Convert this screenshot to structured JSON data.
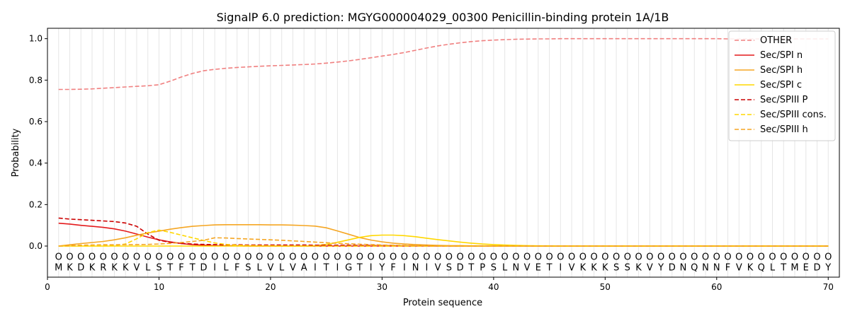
{
  "chart_data": {
    "type": "line",
    "title": "SignalP 6.0 prediction: MGYG000004029_00300 Penicillin-binding protein 1A/1B",
    "xlabel": "Protein sequence",
    "ylabel": "Probability",
    "xlim": [
      0,
      71
    ],
    "ylim": [
      -0.15,
      1.05
    ],
    "x_ticks": [
      0,
      10,
      20,
      30,
      40,
      50,
      60,
      70
    ],
    "y_ticks": [
      0.0,
      0.2,
      0.4,
      0.6,
      0.8,
      1.0
    ],
    "y_tick_labels": [
      "0.0",
      "0.2",
      "0.4",
      "0.6",
      "0.8",
      "1.0"
    ],
    "grid": "vertical lines at each residue",
    "legend_position": "top-right",
    "sequence": [
      "M",
      "K",
      "D",
      "K",
      "R",
      "K",
      "K",
      "V",
      "L",
      "S",
      "T",
      "F",
      "T",
      "D",
      "I",
      "L",
      "F",
      "S",
      "L",
      "V",
      "L",
      "V",
      "A",
      "I",
      "T",
      "I",
      "G",
      "T",
      "I",
      "Y",
      "F",
      "I",
      "N",
      "I",
      "V",
      "S",
      "D",
      "T",
      "P",
      "S",
      "L",
      "N",
      "V",
      "E",
      "T",
      "I",
      "V",
      "K",
      "K",
      "K",
      "S",
      "S",
      "K",
      "V",
      "Y",
      "D",
      "N",
      "Q",
      "N",
      "N",
      "F",
      "V",
      "K",
      "Q",
      "L",
      "T",
      "M",
      "E",
      "D",
      "Y"
    ],
    "marker_label": "O",
    "series": [
      {
        "name": "OTHER",
        "color": "#f08080",
        "dash": "dashed",
        "values": [
          0.755,
          0.755,
          0.756,
          0.758,
          0.761,
          0.764,
          0.767,
          0.77,
          0.773,
          0.778,
          0.795,
          0.815,
          0.832,
          0.845,
          0.852,
          0.857,
          0.861,
          0.864,
          0.867,
          0.869,
          0.871,
          0.873,
          0.875,
          0.878,
          0.882,
          0.887,
          0.893,
          0.9,
          0.908,
          0.916,
          0.924,
          0.933,
          0.944,
          0.955,
          0.965,
          0.973,
          0.98,
          0.986,
          0.99,
          0.993,
          0.995,
          0.997,
          0.998,
          0.999,
          0.999,
          1.0,
          1.0,
          1.0,
          1.0,
          1.0,
          1.0,
          1.0,
          1.0,
          1.0,
          1.0,
          1.0,
          1.0,
          1.0,
          1.0,
          1.0,
          0.999,
          0.999,
          0.999,
          0.999,
          0.999,
          0.999,
          0.999,
          0.999,
          0.999,
          0.999
        ]
      },
      {
        "name": "Sec/SPI n",
        "color": "#e41a1c",
        "dash": "solid",
        "values": [
          0.11,
          0.106,
          0.1,
          0.095,
          0.09,
          0.083,
          0.072,
          0.058,
          0.043,
          0.03,
          0.02,
          0.012,
          0.007,
          0.004,
          0.002,
          0.001,
          0.001,
          0,
          0,
          0,
          0,
          0,
          0,
          0,
          0,
          0,
          0,
          0,
          0,
          0,
          0,
          0,
          0,
          0,
          0,
          0,
          0,
          0,
          0,
          0,
          0,
          0,
          0,
          0,
          0,
          0,
          0,
          0,
          0,
          0,
          0,
          0,
          0,
          0,
          0,
          0,
          0,
          0,
          0,
          0,
          0,
          0,
          0,
          0,
          0,
          0,
          0,
          0,
          0,
          0
        ]
      },
      {
        "name": "Sec/SPI h",
        "color": "#f5a623",
        "dash": "solid",
        "values": [
          0.0,
          0.006,
          0.012,
          0.017,
          0.022,
          0.03,
          0.04,
          0.052,
          0.063,
          0.072,
          0.081,
          0.089,
          0.095,
          0.099,
          0.102,
          0.103,
          0.103,
          0.103,
          0.103,
          0.102,
          0.102,
          0.101,
          0.099,
          0.096,
          0.088,
          0.073,
          0.057,
          0.041,
          0.029,
          0.02,
          0.014,
          0.01,
          0.007,
          0.005,
          0.003,
          0.002,
          0.002,
          0.001,
          0.001,
          0.001,
          0,
          0,
          0,
          0,
          0,
          0,
          0,
          0,
          0,
          0,
          0,
          0,
          0,
          0,
          0,
          0,
          0,
          0,
          0,
          0,
          0,
          0,
          0,
          0,
          0,
          0,
          0,
          0,
          0,
          0
        ]
      },
      {
        "name": "Sec/SPI c",
        "color": "#ffd700",
        "dash": "solid",
        "values": [
          0,
          0,
          0,
          0,
          0,
          0,
          0,
          0,
          0,
          0,
          0,
          0,
          0,
          0,
          0,
          0,
          0,
          0,
          0,
          0,
          0,
          0,
          0,
          0.002,
          0.008,
          0.018,
          0.03,
          0.042,
          0.05,
          0.053,
          0.053,
          0.05,
          0.045,
          0.038,
          0.031,
          0.025,
          0.019,
          0.014,
          0.01,
          0.007,
          0.005,
          0.003,
          0.002,
          0.001,
          0.001,
          0,
          0,
          0,
          0,
          0,
          0,
          0,
          0,
          0,
          0,
          0,
          0,
          0,
          0,
          0,
          0,
          0,
          0,
          0,
          0,
          0,
          0,
          0,
          0,
          0
        ]
      },
      {
        "name": "Sec/SPIII P",
        "color": "#cc0000",
        "dash": "dashed",
        "values": [
          0.135,
          0.13,
          0.127,
          0.124,
          0.121,
          0.118,
          0.111,
          0.095,
          0.058,
          0.028,
          0.018,
          0.013,
          0.01,
          0.008,
          0.007,
          0.006,
          0.006,
          0.005,
          0.005,
          0.005,
          0.005,
          0.005,
          0.005,
          0.004,
          0.004,
          0.004,
          0.004,
          0.003,
          0.003,
          0.002,
          0.002,
          0.001,
          0.001,
          0.001,
          0,
          0,
          0,
          0,
          0,
          0,
          0,
          0,
          0,
          0,
          0,
          0,
          0,
          0,
          0,
          0,
          0,
          0,
          0,
          0,
          0,
          0,
          0,
          0,
          0,
          0,
          0,
          0,
          0,
          0,
          0,
          0,
          0,
          0,
          0,
          0
        ]
      },
      {
        "name": "Sec/SPIII cons.",
        "color": "#ffd700",
        "dash": "dashed",
        "values": [
          0,
          0,
          0,
          0,
          0,
          0.002,
          0.01,
          0.035,
          0.065,
          0.077,
          0.066,
          0.053,
          0.04,
          0.027,
          0.015,
          0.008,
          0.004,
          0.002,
          0.001,
          0.001,
          0,
          0,
          0,
          0,
          0,
          0,
          0,
          0,
          0,
          0,
          0,
          0,
          0,
          0,
          0,
          0,
          0,
          0,
          0,
          0,
          0,
          0,
          0,
          0,
          0,
          0,
          0,
          0,
          0,
          0,
          0,
          0,
          0,
          0,
          0,
          0,
          0,
          0,
          0,
          0,
          0,
          0,
          0,
          0,
          0,
          0,
          0,
          0,
          0,
          0
        ]
      },
      {
        "name": "Sec/SPIII h",
        "color": "#f5a623",
        "dash": "dashed",
        "values": [
          0.0,
          0.002,
          0.004,
          0.005,
          0.006,
          0.006,
          0.007,
          0.007,
          0.008,
          0.01,
          0.013,
          0.017,
          0.022,
          0.028,
          0.04,
          0.039,
          0.036,
          0.034,
          0.032,
          0.03,
          0.028,
          0.025,
          0.022,
          0.019,
          0.016,
          0.013,
          0.011,
          0.009,
          0.007,
          0.005,
          0.004,
          0.003,
          0.002,
          0.002,
          0.001,
          0.001,
          0,
          0,
          0,
          0,
          0,
          0,
          0,
          0,
          0,
          0,
          0,
          0,
          0,
          0,
          0,
          0,
          0,
          0,
          0,
          0,
          0,
          0,
          0,
          0,
          0,
          0,
          0,
          0,
          0,
          0,
          0,
          0,
          0,
          0
        ]
      }
    ]
  }
}
